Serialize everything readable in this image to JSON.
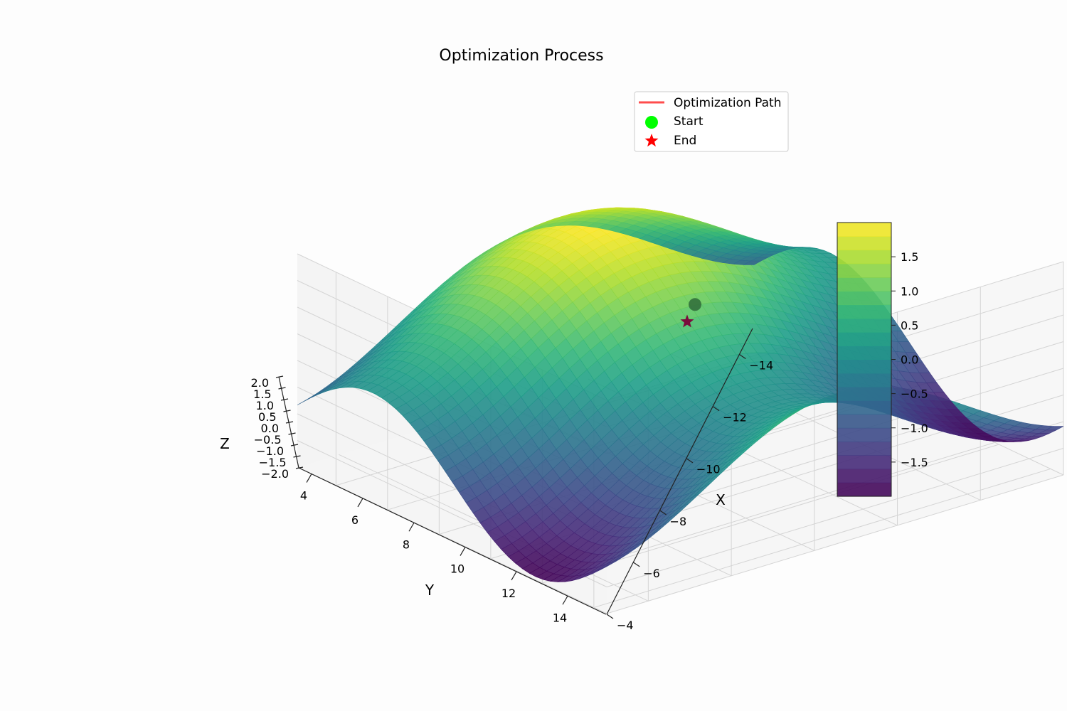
{
  "chart_data": {
    "type": "surface",
    "title": "Optimization Process",
    "xlabel": "X",
    "ylabel": "Y",
    "zlabel": "Z",
    "xlim": [
      -15,
      -4
    ],
    "ylim": [
      3.5,
      15.5
    ],
    "zlim": [
      -2,
      2
    ],
    "x_ticks": [
      "−14",
      "−12",
      "−10",
      "−8",
      "−6",
      "−4"
    ],
    "x_tick_values": [
      -14,
      -12,
      -10,
      -8,
      -6,
      -4
    ],
    "y_ticks": [
      "4",
      "6",
      "8",
      "10",
      "12",
      "14"
    ],
    "y_tick_values": [
      4,
      6,
      8,
      10,
      12,
      14
    ],
    "z_ticks": [
      "2.0",
      "1.5",
      "1.0",
      "0.5",
      "0.0",
      "−0.5",
      "−1.0",
      "−1.5",
      "−2.0"
    ],
    "z_tick_values": [
      2,
      1.5,
      1,
      0.5,
      0,
      -0.5,
      -1,
      -1.5,
      -2
    ],
    "surface": {
      "formula": "z = sin(x/2) + cos(y/2)",
      "x_range": [
        -15,
        -4
      ],
      "y_range": [
        3.5,
        15.5
      ],
      "colormap": "viridis"
    },
    "colorbar": {
      "ticks": [
        "1.5",
        "1.0",
        "0.5",
        "0.0",
        "−0.5",
        "−1.0",
        "−1.5"
      ],
      "tick_values": [
        1.5,
        1.0,
        0.5,
        0.0,
        -0.5,
        -1.0,
        -1.5
      ],
      "range": [
        -2,
        2
      ]
    },
    "series": [
      {
        "name": "Optimization Path",
        "color": "#ff4d4d",
        "type": "line"
      },
      {
        "name": "Start",
        "color": "#00ff00",
        "type": "marker",
        "marker": "circle",
        "point": [
          -9.6,
          9.6
        ]
      },
      {
        "name": "End",
        "color": "#ff0000",
        "type": "marker",
        "marker": "star",
        "point": [
          -9.4,
          9.4
        ]
      }
    ],
    "legend_position": "top-right",
    "grid": true
  }
}
